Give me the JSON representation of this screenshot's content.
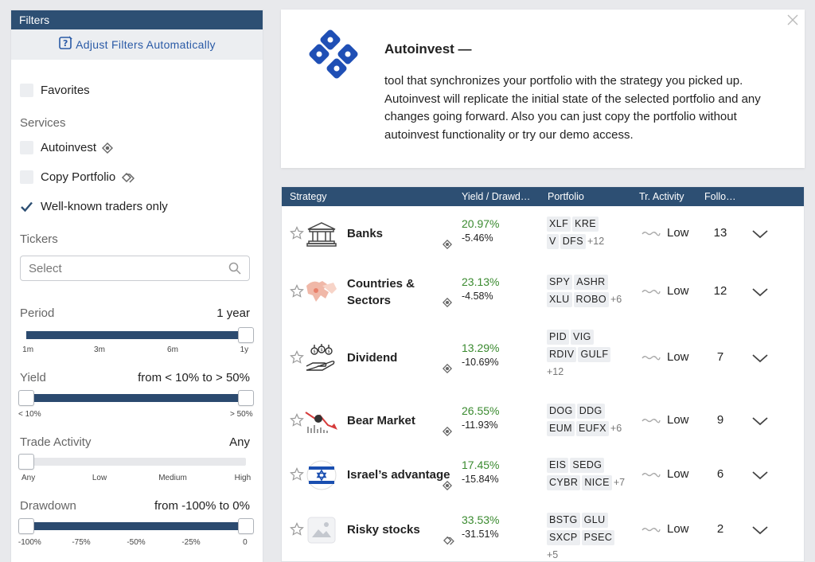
{
  "sidebar": {
    "header": "Filters",
    "auto_adjust": "Adjust Filters Automatically",
    "favorites": "Favorites",
    "services_label": "Services",
    "autoinvest": "Autoinvest",
    "copy_portfolio": "Copy Portfolio",
    "well_known": "Well-known traders only",
    "well_known_checked": true,
    "tickers_label": "Tickers",
    "tickers_placeholder": "Select",
    "period": {
      "label": "Period",
      "value": "1 year",
      "ticks": [
        "1m",
        "3m",
        "6m",
        "1y"
      ],
      "selected_fraction": 1.0
    },
    "yield": {
      "label": "Yield",
      "value": "from < 10% to > 50%",
      "ticks": [
        "< 10%",
        "> 50%"
      ],
      "range_fraction": [
        0.0,
        1.0
      ]
    },
    "trade_activity": {
      "label": "Trade Activity",
      "value": "Any",
      "ticks": [
        "Any",
        "Low",
        "Medium",
        "High"
      ],
      "selected_fraction": 0.0
    },
    "drawdown": {
      "label": "Drawdown",
      "value": "from -100% to 0%",
      "ticks": [
        "-100%",
        "-75%",
        "-50%",
        "-25%",
        "0"
      ],
      "range_fraction": [
        0.0,
        1.0
      ]
    }
  },
  "info": {
    "title": "Autoinvest —",
    "body": "tool that synchronizes your portfolio with the strategy you picked up. Autoinvest will replicate the initial state of the selected portfolio and any changes going forward. Also you can just copy the portfolio without autoinvest functionality or try our demo access."
  },
  "table": {
    "headers": {
      "strategy": "Strategy",
      "yield": "Yield / Drawd…",
      "portfolio": "Portfolio",
      "activity": "Tr. Activity",
      "followers": "Follo…"
    },
    "rows": [
      {
        "name": "Banks",
        "yield": "20.97%",
        "drawdown": "-5.46%",
        "icon": "bank-icon",
        "service": "autoinvest-icon",
        "tickers": [
          "XLF",
          "KRE",
          "V",
          "DFS"
        ],
        "more": "+12",
        "activity": "Low",
        "followers": "13"
      },
      {
        "name": "Countries & Sectors",
        "yield": "23.13%",
        "drawdown": "-4.58%",
        "icon": "map-icon",
        "service": "autoinvest-icon",
        "tickers": [
          "SPY",
          "ASHR",
          "XLU",
          "ROBO"
        ],
        "more": "+6",
        "activity": "Low",
        "followers": "12"
      },
      {
        "name": "Dividend",
        "yield": "13.29%",
        "drawdown": "-10.69%",
        "icon": "dividend-icon",
        "service": "autoinvest-icon",
        "tickers": [
          "PID",
          "VIG",
          "RDIV",
          "GULF"
        ],
        "more": "+12",
        "activity": "Low",
        "followers": "7"
      },
      {
        "name": "Bear Market",
        "yield": "26.55%",
        "drawdown": "-11.93%",
        "icon": "bear-market-icon",
        "service": "autoinvest-icon",
        "tickers": [
          "DOG",
          "DDG",
          "EUM",
          "EUFX"
        ],
        "more": "+6",
        "activity": "Low",
        "followers": "9"
      },
      {
        "name": "Israel’s advantage",
        "yield": "17.45%",
        "drawdown": "-15.84%",
        "icon": "israel-flag-icon",
        "service": "autoinvest-icon",
        "tickers": [
          "EIS",
          "SEDG",
          "CYBR",
          "NICE"
        ],
        "more": "+7",
        "activity": "Low",
        "followers": "6"
      },
      {
        "name": "Risky stocks",
        "yield": "33.53%",
        "drawdown": "-31.51%",
        "icon": "image-placeholder-icon",
        "service": "copy-portfolio-icon",
        "tickers": [
          "BSTG",
          "GLU",
          "SXCP",
          "PSEC"
        ],
        "more": "+5",
        "activity": "Low",
        "followers": "2"
      }
    ]
  },
  "colors": {
    "header_bg": "#2d4f73",
    "accent_blue": "#2a5aa6",
    "positive_green": "#3a8a2f",
    "slider_fill": "#2b4a6f"
  }
}
